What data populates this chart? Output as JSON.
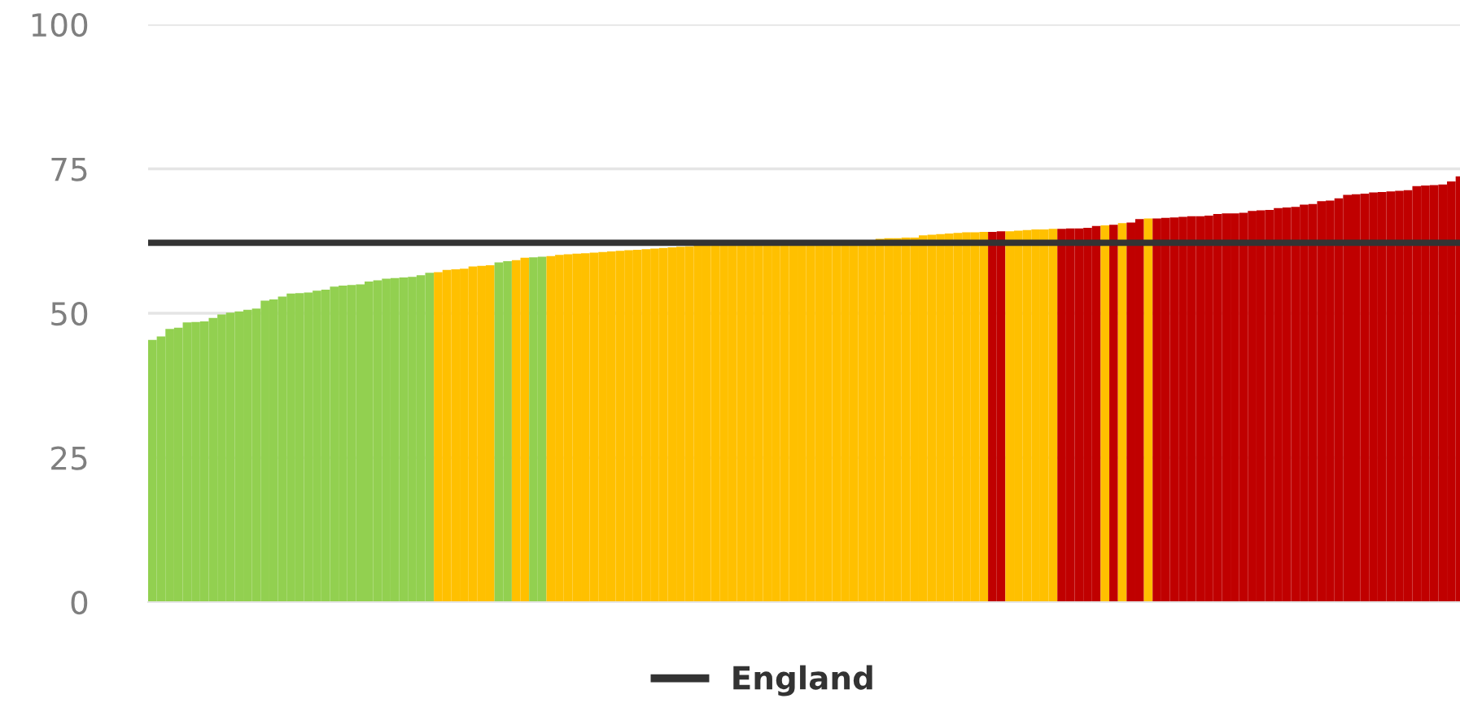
{
  "chart_data": {
    "type": "bar",
    "categories": [
      null,
      null,
      null,
      null,
      null,
      null,
      null,
      null,
      null,
      null,
      null,
      null,
      null,
      null,
      null,
      null,
      null,
      null,
      null,
      null,
      null,
      null,
      null,
      null,
      null,
      null,
      null,
      null,
      null,
      null,
      null,
      null,
      null,
      null,
      null,
      null,
      null,
      null,
      null,
      null,
      null,
      null,
      null,
      null,
      null,
      null,
      null,
      null,
      null,
      null,
      null,
      null,
      null,
      null,
      null,
      null,
      null,
      null,
      null,
      null,
      null,
      null,
      null,
      null,
      null,
      null,
      null,
      null,
      null,
      null,
      null,
      null,
      null,
      null,
      null,
      null,
      null,
      null,
      null,
      null,
      null,
      null,
      null,
      null,
      null,
      null,
      null,
      null,
      null,
      null,
      null,
      null,
      null,
      null,
      null,
      null,
      null,
      null,
      null,
      null,
      null,
      null,
      null,
      null,
      null,
      null,
      null,
      null,
      null,
      null,
      null,
      null,
      null,
      null,
      null,
      null,
      null,
      null,
      null,
      null,
      null,
      null,
      null,
      null,
      null,
      null,
      null,
      null,
      null,
      null,
      null,
      null,
      null,
      null,
      null,
      null,
      null,
      null,
      null,
      null,
      null,
      null,
      null,
      null,
      null,
      null,
      null,
      null,
      null,
      null,
      null,
      null
    ],
    "values": [
      45.4,
      46.0,
      47.3,
      47.5,
      48.4,
      48.5,
      48.6,
      49.2,
      49.8,
      50.1,
      50.3,
      50.6,
      50.8,
      52.2,
      52.4,
      52.9,
      53.4,
      53.5,
      53.6,
      53.9,
      54.1,
      54.6,
      54.8,
      54.9,
      55.0,
      55.5,
      55.7,
      56.0,
      56.1,
      56.2,
      56.3,
      56.6,
      57.0,
      57.1,
      57.5,
      57.6,
      57.7,
      58.1,
      58.2,
      58.3,
      58.8,
      59.0,
      59.2,
      59.6,
      59.7,
      59.8,
      59.9,
      60.1,
      60.2,
      60.3,
      60.4,
      60.5,
      60.6,
      60.7,
      60.8,
      60.9,
      61.0,
      61.1,
      61.2,
      61.3,
      61.4,
      61.5,
      61.6,
      61.7,
      61.8,
      61.8,
      61.9,
      61.9,
      62.0,
      62.0,
      62.0,
      62.1,
      62.1,
      62.1,
      62.2,
      62.2,
      62.2,
      62.3,
      62.3,
      62.3,
      62.4,
      62.4,
      62.4,
      62.5,
      62.9,
      63.0,
      63.0,
      63.1,
      63.1,
      63.5,
      63.6,
      63.7,
      63.8,
      63.9,
      64.0,
      64.0,
      64.1,
      64.1,
      64.2,
      64.2,
      64.3,
      64.4,
      64.5,
      64.5,
      64.6,
      64.6,
      64.7,
      64.7,
      64.8,
      65.1,
      65.2,
      65.3,
      65.6,
      65.7,
      66.3,
      66.4,
      66.4,
      66.5,
      66.6,
      66.7,
      66.8,
      66.8,
      66.9,
      67.2,
      67.3,
      67.3,
      67.4,
      67.7,
      67.8,
      67.9,
      68.2,
      68.3,
      68.4,
      68.8,
      68.9,
      69.4,
      69.5,
      69.9,
      70.5,
      70.6,
      70.7,
      70.9,
      71.0,
      71.1,
      71.2,
      71.3,
      72.0,
      72.1,
      72.2,
      72.3,
      72.8,
      73.7
    ],
    "colors": [
      "#92d050",
      "#92d050",
      "#92d050",
      "#92d050",
      "#92d050",
      "#92d050",
      "#92d050",
      "#92d050",
      "#92d050",
      "#92d050",
      "#92d050",
      "#92d050",
      "#92d050",
      "#92d050",
      "#92d050",
      "#92d050",
      "#92d050",
      "#92d050",
      "#92d050",
      "#92d050",
      "#92d050",
      "#92d050",
      "#92d050",
      "#92d050",
      "#92d050",
      "#92d050",
      "#92d050",
      "#92d050",
      "#92d050",
      "#92d050",
      "#92d050",
      "#92d050",
      "#92d050",
      "#ffc000",
      "#ffc000",
      "#ffc000",
      "#ffc000",
      "#ffc000",
      "#ffc000",
      "#ffc000",
      "#92d050",
      "#92d050",
      "#ffc000",
      "#ffc000",
      "#92d050",
      "#92d050",
      "#ffc000",
      "#ffc000",
      "#ffc000",
      "#ffc000",
      "#ffc000",
      "#ffc000",
      "#ffc000",
      "#ffc000",
      "#ffc000",
      "#ffc000",
      "#ffc000",
      "#ffc000",
      "#ffc000",
      "#ffc000",
      "#ffc000",
      "#ffc000",
      "#ffc000",
      "#ffc000",
      "#ffc000",
      "#ffc000",
      "#ffc000",
      "#ffc000",
      "#ffc000",
      "#ffc000",
      "#ffc000",
      "#ffc000",
      "#ffc000",
      "#ffc000",
      "#ffc000",
      "#ffc000",
      "#ffc000",
      "#ffc000",
      "#ffc000",
      "#ffc000",
      "#ffc000",
      "#ffc000",
      "#ffc000",
      "#ffc000",
      "#ffc000",
      "#ffc000",
      "#ffc000",
      "#ffc000",
      "#ffc000",
      "#ffc000",
      "#ffc000",
      "#ffc000",
      "#ffc000",
      "#ffc000",
      "#ffc000",
      "#ffc000",
      "#ffc000",
      "#c00000",
      "#c00000",
      "#ffc000",
      "#ffc000",
      "#ffc000",
      "#ffc000",
      "#ffc000",
      "#ffc000",
      "#c00000",
      "#c00000",
      "#c00000",
      "#c00000",
      "#c00000",
      "#ffc000",
      "#c00000",
      "#ffc000",
      "#c00000",
      "#c00000",
      "#ffc000",
      "#c00000",
      "#c00000",
      "#c00000",
      "#c00000",
      "#c00000",
      "#c00000",
      "#c00000",
      "#c00000",
      "#c00000",
      "#c00000",
      "#c00000",
      "#c00000",
      "#c00000",
      "#c00000",
      "#c00000",
      "#c00000",
      "#c00000",
      "#c00000",
      "#c00000",
      "#c00000",
      "#c00000",
      "#c00000",
      "#c00000",
      "#c00000",
      "#c00000",
      "#c00000",
      "#c00000",
      "#c00000",
      "#c00000",
      "#c00000",
      "#c00000",
      "#c00000",
      "#c00000",
      "#c00000",
      "#c00000",
      "#c00000"
    ],
    "ylim": [
      0,
      100
    ],
    "yticks": [
      0,
      25,
      50,
      75,
      100
    ],
    "grid": "y",
    "tick_labels": "y",
    "ref_lines": [
      {
        "axis": "y",
        "value": 62.2,
        "label": "England",
        "color": "#333333"
      }
    ],
    "legend": "bottom"
  }
}
